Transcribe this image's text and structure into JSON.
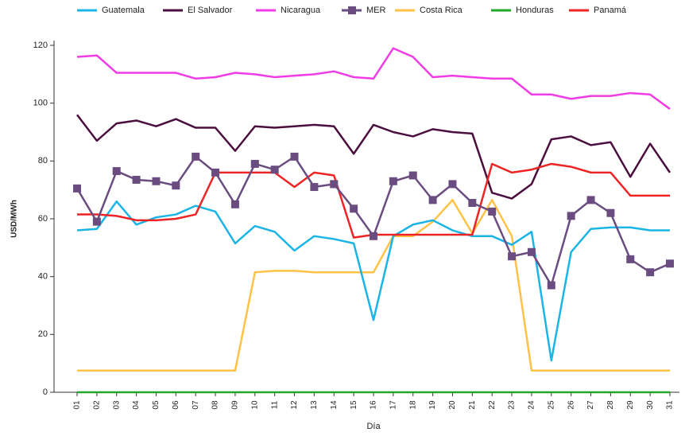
{
  "chart_data": {
    "type": "line",
    "x_label": "Día",
    "y_label": "USD/MWh",
    "categories": [
      "01",
      "02",
      "03",
      "04",
      "05",
      "06",
      "07",
      "08",
      "09",
      "10",
      "11",
      "12",
      "13",
      "14",
      "15",
      "16",
      "17",
      "18",
      "19",
      "20",
      "21",
      "22",
      "23",
      "24",
      "25",
      "26",
      "27",
      "28",
      "29",
      "30",
      "31"
    ],
    "ylim": [
      0,
      120
    ],
    "yticks": [
      0,
      20,
      40,
      60,
      80,
      100,
      120
    ],
    "series": [
      {
        "name": "Guatemala",
        "color": "#1ab4e6",
        "values": [
          56,
          56.5,
          66,
          58,
          60.5,
          61.5,
          64.5,
          62.5,
          51.5,
          57.5,
          55.5,
          49,
          54,
          53,
          51.5,
          25,
          54,
          58,
          59.5,
          56,
          54,
          54,
          51,
          55.5,
          11,
          48.5,
          56.5,
          57,
          57,
          56,
          56
        ]
      },
      {
        "name": "El Salvador",
        "color": "#4a0f3f",
        "values": [
          96,
          87,
          93,
          94,
          92,
          94.5,
          91.5,
          91.5,
          83.5,
          92,
          91.5,
          92,
          92.5,
          92,
          82.5,
          92.5,
          90,
          88.5,
          91,
          90,
          89.5,
          69,
          67,
          72,
          87.5,
          88.5,
          85.5,
          86.5,
          74.5,
          86,
          76
        ]
      },
      {
        "name": "Nicaragua",
        "color": "#f03ce6",
        "values": [
          116,
          116.5,
          110.5,
          110.5,
          110.5,
          110.5,
          108.5,
          109,
          110.5,
          110,
          109,
          109.5,
          110,
          111,
          109,
          108.5,
          119,
          116,
          109,
          109.5,
          109,
          108.5,
          108.5,
          103,
          103,
          101.5,
          102.5,
          102.5,
          103.5,
          103,
          98
        ]
      },
      {
        "name": "MER",
        "color": "#6a4c80",
        "markers": true,
        "values": [
          70.5,
          59,
          76.5,
          73.5,
          73,
          71.5,
          81.5,
          76,
          65,
          79,
          77,
          81.5,
          71,
          72,
          63.5,
          54,
          73,
          75,
          66.5,
          72,
          65.5,
          62.5,
          47,
          48.5,
          37,
          61,
          66.5,
          62,
          46,
          41.5,
          44.5
        ]
      },
      {
        "name": "Costa Rica",
        "color": "#ffc247",
        "values": [
          7.5,
          7.5,
          7.5,
          7.5,
          7.5,
          7.5,
          7.5,
          7.5,
          7.5,
          41.5,
          42,
          42,
          41.5,
          41.5,
          41.5,
          41.5,
          54,
          54,
          59,
          66.5,
          55,
          66.5,
          54,
          7.5,
          7.5,
          7.5,
          7.5,
          7.5,
          7.5,
          7.5,
          7.5
        ]
      },
      {
        "name": "Honduras",
        "color": "#1fa82a",
        "values": [
          0,
          0,
          0,
          0,
          0,
          0,
          0,
          0,
          0,
          0,
          0,
          0,
          0,
          0,
          0,
          0,
          0,
          0,
          0,
          0,
          0,
          0,
          0,
          0,
          0,
          0,
          0,
          0,
          0,
          0,
          0
        ]
      },
      {
        "name": "Panamá",
        "color": "#ee2424",
        "values": [
          61.5,
          61.5,
          61,
          59.5,
          59.5,
          60,
          61.5,
          76,
          76,
          76,
          76,
          71,
          76,
          75,
          53.5,
          54.5,
          54.5,
          54.5,
          54.5,
          54.5,
          54.5,
          79,
          76,
          77,
          79,
          78,
          76,
          76,
          68,
          68,
          68
        ]
      }
    ]
  }
}
